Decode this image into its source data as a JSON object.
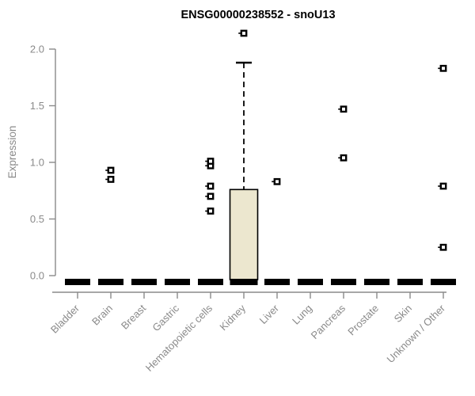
{
  "chart_data": {
    "type": "boxplot",
    "title": "ENSG00000238552 - snoU13",
    "xlabel": "",
    "ylabel": "Expression",
    "ylim": [
      0,
      2.2
    ],
    "yticks": [
      {
        "v": 0.0,
        "label": "0.0"
      },
      {
        "v": 0.5,
        "label": "0.5"
      },
      {
        "v": 1.0,
        "label": "1.0"
      },
      {
        "v": 1.5,
        "label": "1.5"
      },
      {
        "v": 2.0,
        "label": "2.0"
      }
    ],
    "grid": false,
    "legend": "none",
    "categories": [
      "Bladder",
      "Brain",
      "Breast",
      "Gastric",
      "Hematopoietic cells",
      "Kidney",
      "Liver",
      "Lung",
      "Pancreas",
      "Prostate",
      "Skin",
      "Unknown / Other"
    ],
    "boxes": [
      {
        "category": "Bladder",
        "q1": 0,
        "median": 0,
        "q3": 0,
        "whisker_low": 0,
        "whisker_high": 0,
        "outliers": []
      },
      {
        "category": "Brain",
        "q1": 0,
        "median": 0,
        "q3": 0,
        "whisker_low": 0,
        "whisker_high": 0,
        "outliers": [
          0.85,
          0.93
        ]
      },
      {
        "category": "Breast",
        "q1": 0,
        "median": 0,
        "q3": 0,
        "whisker_low": 0,
        "whisker_high": 0,
        "outliers": []
      },
      {
        "category": "Gastric",
        "q1": 0,
        "median": 0,
        "q3": 0,
        "whisker_low": 0,
        "whisker_high": 0,
        "outliers": []
      },
      {
        "category": "Hematopoietic cells",
        "q1": 0,
        "median": 0,
        "q3": 0,
        "whisker_low": 0,
        "whisker_high": 0,
        "outliers": [
          0.57,
          0.7,
          0.79,
          0.97,
          1.01
        ]
      },
      {
        "category": "Kidney",
        "q1": 0,
        "median": 0.02,
        "q3": 0.76,
        "whisker_low": 0,
        "whisker_high": 1.88,
        "outliers": [
          2.14
        ]
      },
      {
        "category": "Liver",
        "q1": 0,
        "median": 0,
        "q3": 0,
        "whisker_low": 0,
        "whisker_high": 0,
        "outliers": [
          0.83
        ]
      },
      {
        "category": "Lung",
        "q1": 0,
        "median": 0,
        "q3": 0,
        "whisker_low": 0,
        "whisker_high": 0,
        "outliers": []
      },
      {
        "category": "Pancreas",
        "q1": 0,
        "median": 0,
        "q3": 0,
        "whisker_low": 0,
        "whisker_high": 0,
        "outliers": [
          1.04,
          1.47
        ]
      },
      {
        "category": "Prostate",
        "q1": 0,
        "median": 0,
        "q3": 0,
        "whisker_low": 0,
        "whisker_high": 0,
        "outliers": []
      },
      {
        "category": "Skin",
        "q1": 0,
        "median": 0,
        "q3": 0,
        "whisker_low": 0,
        "whisker_high": 0,
        "outliers": []
      },
      {
        "category": "Unknown / Other",
        "q1": 0,
        "median": 0,
        "q3": 0,
        "whisker_low": 0,
        "whisker_high": 0,
        "outliers": [
          0.25,
          0.79,
          1.83
        ]
      }
    ],
    "colors": {
      "box_fill": "#ece7cf",
      "box_stroke": "#000000",
      "bar": "#000000",
      "outlier_stroke": "#000000",
      "outlier_fill": "#ffffff",
      "axis": "#8a8a8a",
      "tick_label": "#8a8a8a",
      "title": "#000000",
      "background": "#ffffff"
    }
  }
}
